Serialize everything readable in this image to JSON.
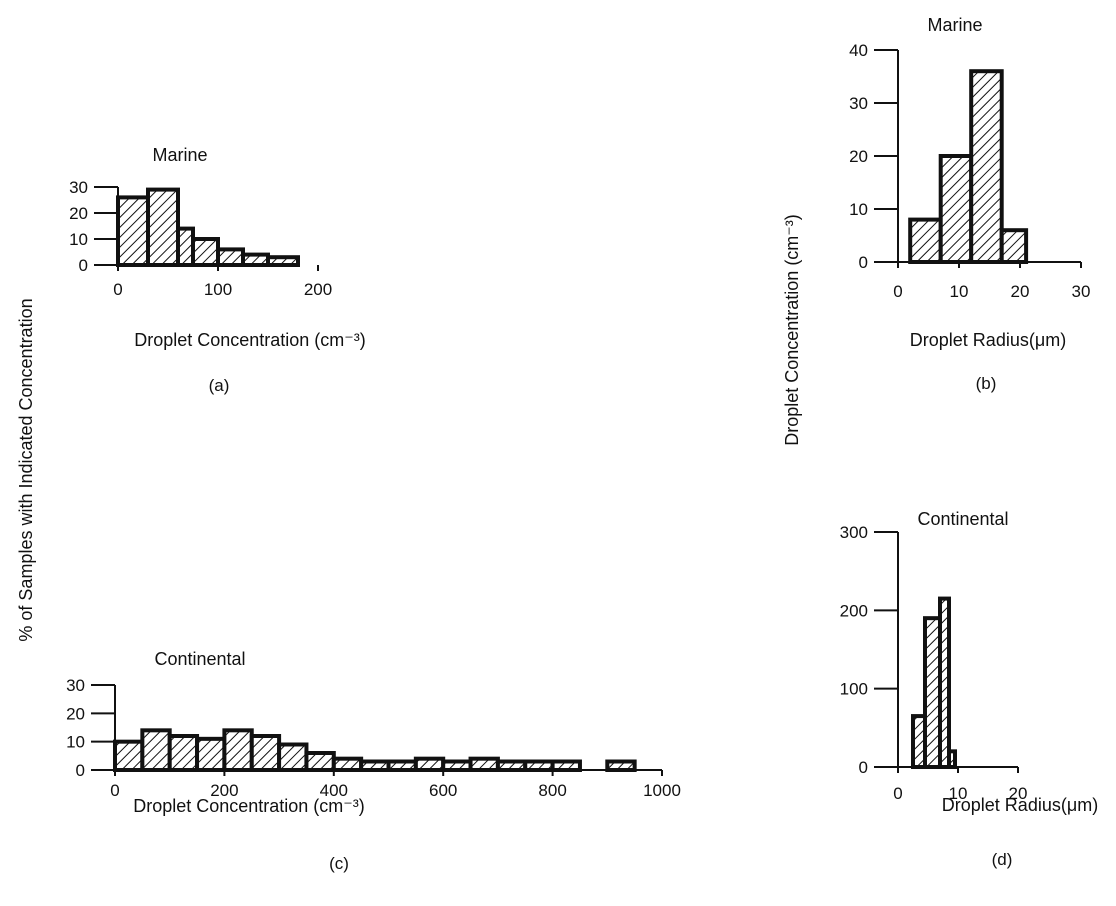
{
  "shared_labels": {
    "left_ylabel": "% of Samples with Indicated Concentration",
    "right_ylabel": "Droplet Concentration (cm⁻³)"
  },
  "chart_data": [
    {
      "id": "a",
      "type": "bar",
      "title": "Marine",
      "panel_label": "(a)",
      "xlabel": "Droplet Concentration (cm⁻³)",
      "ylabel": "% of Samples with Indicated Concentration",
      "xlim": [
        0,
        300
      ],
      "ylim": [
        0,
        30
      ],
      "xticks": [
        0,
        100,
        200
      ],
      "yticks": [
        0,
        10,
        20,
        30
      ],
      "bin_edges": [
        0,
        30,
        60,
        75,
        100,
        125,
        150,
        180
      ],
      "values": [
        26,
        29,
        14,
        10,
        6,
        4,
        3
      ]
    },
    {
      "id": "b",
      "type": "bar",
      "title": "Marine",
      "panel_label": "(b)",
      "xlabel": "Droplet Radius(μm)",
      "ylabel": "Droplet Concentration (cm⁻³)",
      "xlim": [
        0,
        30
      ],
      "ylim": [
        0,
        40
      ],
      "xticks": [
        0,
        10,
        20,
        30
      ],
      "yticks": [
        0,
        10,
        20,
        30,
        40
      ],
      "bin_edges": [
        2,
        7,
        12,
        17,
        21
      ],
      "values": [
        8,
        20,
        36,
        6
      ]
    },
    {
      "id": "c",
      "type": "bar",
      "title": "Continental",
      "panel_label": "(c)",
      "xlabel": "Droplet Concentration (cm⁻³)",
      "ylabel": "% of Samples with Indicated Concentration",
      "xlim": [
        0,
        1000
      ],
      "ylim": [
        0,
        30
      ],
      "xticks": [
        0,
        200,
        400,
        600,
        800,
        1000
      ],
      "yticks": [
        0,
        10,
        20,
        30
      ],
      "bin_edges": [
        0,
        50,
        100,
        150,
        200,
        250,
        300,
        350,
        400,
        450,
        500,
        550,
        600,
        650,
        700,
        750,
        800,
        850,
        900,
        950
      ],
      "values": [
        10,
        14,
        12,
        11,
        14,
        12,
        9,
        6,
        4,
        3,
        3,
        4,
        3,
        4,
        3,
        3,
        3,
        0,
        3
      ]
    },
    {
      "id": "d",
      "type": "bar",
      "title": "Continental",
      "panel_label": "(d)",
      "xlabel": "Droplet Radius(μm)",
      "ylabel": "Droplet Concentration (cm⁻³)",
      "xlim": [
        0,
        20
      ],
      "ylim": [
        0,
        300
      ],
      "xticks": [
        0,
        10,
        20
      ],
      "yticks": [
        0,
        100,
        200,
        300
      ],
      "bin_edges": [
        2.5,
        4.5,
        7,
        8.5,
        9.5
      ],
      "values": [
        65,
        190,
        215,
        20
      ]
    }
  ]
}
